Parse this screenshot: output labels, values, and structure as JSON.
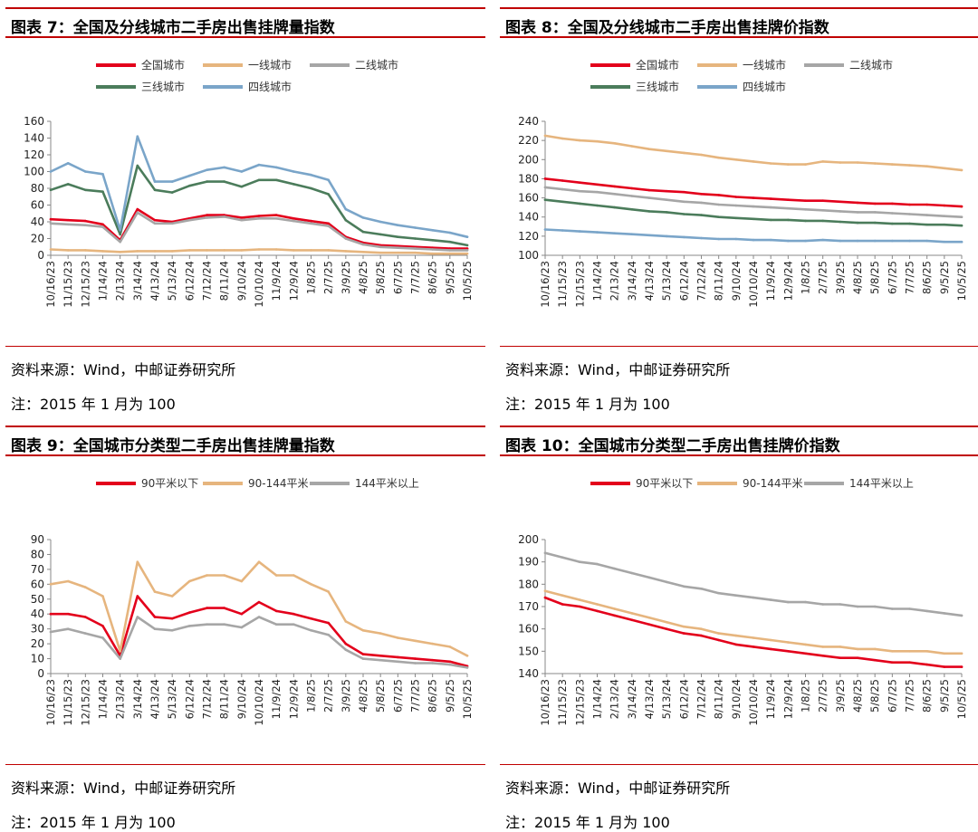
{
  "panels": [
    {
      "title": "图表 7：全国及分线城市二手房出售挂牌量指数",
      "source": "资料来源：Wind，中邮证券研究所",
      "note": "注：2015 年 1 月为 100"
    },
    {
      "title": "图表 8：全国及分线城市二手房出售挂牌价指数",
      "source": "资料来源：Wind，中邮证券研究所",
      "note": "注：2015 年 1 月为 100"
    },
    {
      "title": "图表 9：全国城市分类型二手房出售挂牌量指数",
      "source": "资料来源：Wind，中邮证券研究所",
      "note": "注：2015 年 1 月为 100"
    },
    {
      "title": "图表 10：全国城市分类型二手房出售挂牌价指数",
      "source": "资料来源：Wind，中邮证券研究所",
      "note": "注：2015 年 1 月为 100"
    }
  ],
  "chart_data": [
    {
      "type": "line",
      "categories": [
        "10/16/23",
        "11/15/23",
        "12/15/23",
        "1/14/24",
        "2/13/24",
        "3/14/24",
        "4/13/24",
        "5/13/24",
        "6/12/24",
        "7/12/24",
        "8/11/24",
        "9/10/24",
        "10/10/24",
        "11/9/24",
        "12/9/24",
        "1/8/25",
        "2/7/25",
        "3/9/25",
        "4/8/25",
        "5/8/25",
        "6/7/25",
        "7/7/25",
        "8/6/25",
        "9/5/25",
        "10/5/25"
      ],
      "ylim": [
        0,
        160
      ],
      "yticks": [
        0,
        20,
        40,
        60,
        80,
        100,
        120,
        140,
        160
      ],
      "grid": false,
      "legend_position": "top",
      "series": [
        {
          "name": "全国城市",
          "color": "#e3001b",
          "values": [
            43,
            42,
            41,
            37,
            18,
            55,
            42,
            40,
            44,
            48,
            48,
            45,
            47,
            48,
            44,
            41,
            38,
            22,
            15,
            12,
            11,
            10,
            9,
            8,
            8
          ]
        },
        {
          "name": "一线城市",
          "color": "#e6b57e",
          "values": [
            7,
            6,
            6,
            5,
            4,
            5,
            5,
            5,
            6,
            6,
            6,
            6,
            7,
            7,
            6,
            6,
            6,
            5,
            4,
            3,
            3,
            3,
            2,
            2,
            2
          ]
        },
        {
          "name": "二线城市",
          "color": "#a6a6a6",
          "values": [
            38,
            37,
            36,
            34,
            16,
            51,
            38,
            38,
            42,
            45,
            46,
            42,
            44,
            44,
            41,
            38,
            35,
            20,
            13,
            10,
            9,
            8,
            7,
            6,
            6
          ]
        },
        {
          "name": "三线城市",
          "color": "#4b7c5b",
          "values": [
            78,
            85,
            78,
            76,
            25,
            107,
            78,
            75,
            83,
            88,
            88,
            82,
            90,
            90,
            85,
            80,
            73,
            42,
            28,
            25,
            22,
            20,
            18,
            16,
            12
          ]
        },
        {
          "name": "四线城市",
          "color": "#7aa5c9",
          "values": [
            100,
            110,
            100,
            97,
            30,
            142,
            88,
            88,
            95,
            102,
            105,
            100,
            108,
            105,
            100,
            96,
            90,
            55,
            45,
            40,
            36,
            33,
            30,
            27,
            22
          ]
        }
      ]
    },
    {
      "type": "line",
      "categories": [
        "10/16/23",
        "11/15/23",
        "12/15/23",
        "1/14/24",
        "2/13/24",
        "3/14/24",
        "4/13/24",
        "5/13/24",
        "6/12/24",
        "7/12/24",
        "8/11/24",
        "9/10/24",
        "10/10/24",
        "11/9/24",
        "12/9/24",
        "1/8/25",
        "2/7/25",
        "3/9/25",
        "4/8/25",
        "5/8/25",
        "6/7/25",
        "7/7/25",
        "8/6/25",
        "9/5/25",
        "10/5/25"
      ],
      "ylim": [
        100,
        240
      ],
      "yticks": [
        100,
        120,
        140,
        160,
        180,
        200,
        220,
        240
      ],
      "grid": false,
      "legend_position": "top",
      "series": [
        {
          "name": "全国城市",
          "color": "#e3001b",
          "values": [
            180,
            178,
            176,
            174,
            172,
            170,
            168,
            167,
            166,
            164,
            163,
            161,
            160,
            159,
            158,
            157,
            157,
            156,
            155,
            154,
            154,
            153,
            153,
            152,
            151
          ]
        },
        {
          "name": "一线城市",
          "color": "#e6b57e",
          "values": [
            225,
            222,
            220,
            219,
            217,
            214,
            211,
            209,
            207,
            205,
            202,
            200,
            198,
            196,
            195,
            195,
            198,
            197,
            197,
            196,
            195,
            194,
            193,
            191,
            189
          ]
        },
        {
          "name": "二线城市",
          "color": "#a6a6a6",
          "values": [
            171,
            169,
            167,
            166,
            164,
            162,
            160,
            158,
            156,
            155,
            153,
            152,
            151,
            150,
            149,
            148,
            147,
            146,
            145,
            145,
            144,
            143,
            142,
            141,
            140
          ]
        },
        {
          "name": "三线城市",
          "color": "#4b7c5b",
          "values": [
            158,
            156,
            154,
            152,
            150,
            148,
            146,
            145,
            143,
            142,
            140,
            139,
            138,
            137,
            137,
            136,
            136,
            135,
            134,
            134,
            133,
            133,
            132,
            132,
            131
          ]
        },
        {
          "name": "四线城市",
          "color": "#7aa5c9",
          "values": [
            127,
            126,
            125,
            124,
            123,
            122,
            121,
            120,
            119,
            118,
            117,
            117,
            116,
            116,
            115,
            115,
            116,
            115,
            115,
            115,
            115,
            115,
            115,
            114,
            114
          ]
        }
      ]
    },
    {
      "type": "line",
      "categories": [
        "10/16/23",
        "11/15/23",
        "12/15/23",
        "1/14/24",
        "2/13/24",
        "3/14/24",
        "4/13/24",
        "5/13/24",
        "6/12/24",
        "7/12/24",
        "8/11/24",
        "9/10/24",
        "10/10/24",
        "11/9/24",
        "12/9/24",
        "1/8/25",
        "2/7/25",
        "3/9/25",
        "4/8/25",
        "5/8/25",
        "6/7/25",
        "7/7/25",
        "8/6/25",
        "9/5/25",
        "10/5/25"
      ],
      "ylim": [
        0,
        90
      ],
      "yticks": [
        0,
        10,
        20,
        30,
        40,
        50,
        60,
        70,
        80,
        90
      ],
      "grid": false,
      "legend_position": "top",
      "series": [
        {
          "name": "90平米以下",
          "color": "#e3001b",
          "values": [
            40,
            40,
            38,
            32,
            12,
            52,
            38,
            37,
            41,
            44,
            44,
            40,
            48,
            42,
            40,
            37,
            34,
            20,
            13,
            12,
            11,
            10,
            9,
            8,
            5
          ]
        },
        {
          "name": "90-144平米",
          "color": "#e6b57e",
          "values": [
            60,
            62,
            58,
            52,
            15,
            75,
            55,
            52,
            62,
            66,
            66,
            62,
            75,
            66,
            66,
            60,
            55,
            35,
            29,
            27,
            24,
            22,
            20,
            18,
            12
          ]
        },
        {
          "name": "144平米以上",
          "color": "#a6a6a6",
          "values": [
            28,
            30,
            27,
            24,
            10,
            38,
            30,
            29,
            32,
            33,
            33,
            31,
            38,
            33,
            33,
            29,
            26,
            16,
            10,
            9,
            8,
            7,
            7,
            6,
            4
          ]
        }
      ]
    },
    {
      "type": "line",
      "categories": [
        "10/16/23",
        "11/15/23",
        "12/15/23",
        "1/14/24",
        "2/13/24",
        "3/14/24",
        "4/13/24",
        "5/13/24",
        "6/12/24",
        "7/12/24",
        "8/11/24",
        "9/10/24",
        "10/10/24",
        "11/9/24",
        "12/9/24",
        "1/8/25",
        "2/7/25",
        "3/9/25",
        "4/8/25",
        "5/8/25",
        "6/7/25",
        "7/7/25",
        "8/6/25",
        "9/5/25",
        "10/5/25"
      ],
      "ylim": [
        140,
        200
      ],
      "yticks": [
        140,
        150,
        160,
        170,
        180,
        190,
        200
      ],
      "grid": false,
      "legend_position": "top",
      "series": [
        {
          "name": "90平米以下",
          "color": "#e3001b",
          "values": [
            174,
            171,
            170,
            168,
            166,
            164,
            162,
            160,
            158,
            157,
            155,
            153,
            152,
            151,
            150,
            149,
            148,
            147,
            147,
            146,
            145,
            145,
            144,
            143,
            143
          ]
        },
        {
          "name": "90-144平米",
          "color": "#e6b57e",
          "values": [
            177,
            175,
            173,
            171,
            169,
            167,
            165,
            163,
            161,
            160,
            158,
            157,
            156,
            155,
            154,
            153,
            152,
            152,
            151,
            151,
            150,
            150,
            150,
            149,
            149
          ]
        },
        {
          "name": "144平米以上",
          "color": "#a6a6a6",
          "values": [
            194,
            192,
            190,
            189,
            187,
            185,
            183,
            181,
            179,
            178,
            176,
            175,
            174,
            173,
            172,
            172,
            171,
            171,
            170,
            170,
            169,
            169,
            168,
            167,
            166
          ]
        }
      ]
    }
  ]
}
